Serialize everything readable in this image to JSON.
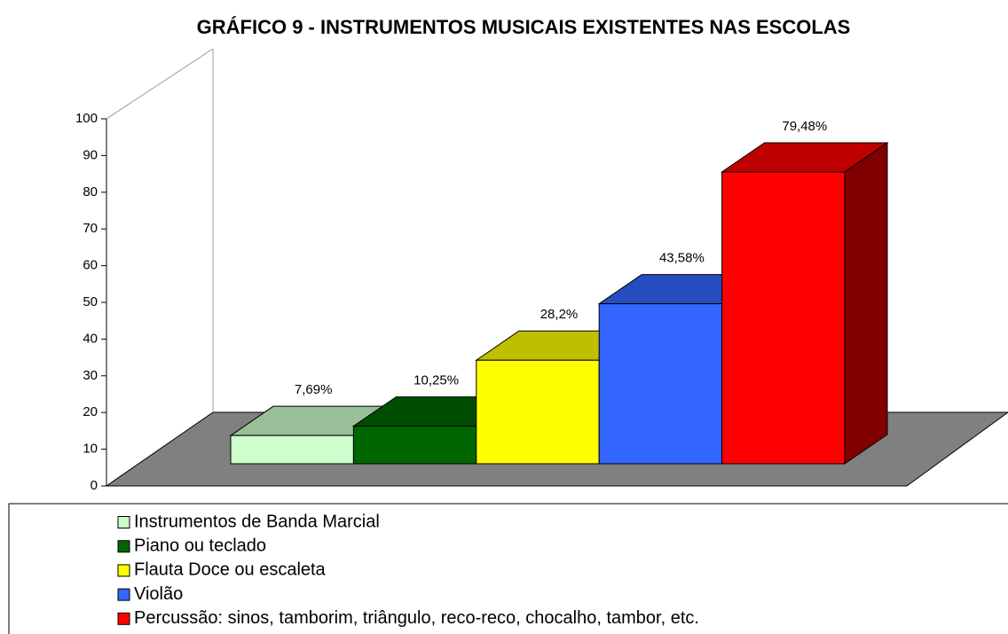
{
  "chart_data": {
    "type": "bar3d",
    "title": "GRÁFICO 9 - INSTRUMENTOS MUSICAIS EXISTENTES NAS ESCOLAS",
    "categories": [
      "Instrumentos de Banda Marcial",
      "Piano ou teclado",
      "Flauta Doce ou escaleta",
      "Violão",
      "Percussão: sinos, tamborim, triângulo, reco-reco, chocalho, tambor, etc."
    ],
    "values": [
      7.69,
      10.25,
      28.2,
      43.58,
      79.48
    ],
    "value_labels": [
      "7,69%",
      "10,25%",
      "28,2%",
      "43,58%",
      "79,48%"
    ],
    "colors": [
      "#ccffcc",
      "#006600",
      "#ffff00",
      "#3366ff",
      "#ff0000"
    ],
    "ylim": [
      0,
      100
    ],
    "yticks": [
      0,
      10,
      20,
      30,
      40,
      50,
      60,
      70,
      80,
      90,
      100
    ]
  }
}
